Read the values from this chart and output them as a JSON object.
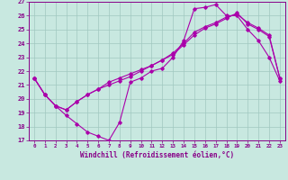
{
  "xlabel": "Windchill (Refroidissement éolien,°C)",
  "xlim": [
    -0.5,
    23.5
  ],
  "ylim": [
    17,
    27
  ],
  "yticks": [
    17,
    18,
    19,
    20,
    21,
    22,
    23,
    24,
    25,
    26,
    27
  ],
  "xticks": [
    0,
    1,
    2,
    3,
    4,
    5,
    6,
    7,
    8,
    9,
    10,
    11,
    12,
    13,
    14,
    15,
    16,
    17,
    18,
    19,
    20,
    21,
    22,
    23
  ],
  "bg_color": "#c8e8e0",
  "grid_color": "#a0c8c0",
  "line_color": "#aa00aa",
  "tick_color": "#880088",
  "line1_x": [
    0,
    1,
    2,
    3,
    4,
    5,
    6,
    7,
    8,
    9,
    10,
    11,
    12,
    13,
    14,
    15,
    16,
    17,
    18,
    19,
    20,
    21,
    22,
    23
  ],
  "line1_y": [
    21.5,
    20.3,
    19.5,
    18.8,
    18.2,
    17.6,
    17.3,
    17.0,
    18.3,
    21.2,
    21.5,
    22.0,
    22.2,
    23.0,
    24.2,
    26.5,
    26.6,
    26.8,
    26.0,
    26.0,
    25.0,
    24.2,
    23.0,
    21.3
  ],
  "line2_x": [
    0,
    1,
    2,
    3,
    4,
    5,
    6,
    7,
    8,
    9,
    10,
    11,
    12,
    13,
    14,
    15,
    16,
    17,
    18,
    19,
    20,
    21,
    22,
    23
  ],
  "line2_y": [
    21.5,
    20.3,
    19.5,
    19.2,
    19.8,
    20.3,
    20.7,
    21.2,
    21.5,
    21.8,
    22.1,
    22.4,
    22.8,
    23.2,
    23.9,
    24.6,
    25.1,
    25.4,
    25.8,
    26.2,
    25.4,
    25.0,
    24.5,
    21.5
  ],
  "line3_x": [
    0,
    1,
    2,
    3,
    4,
    5,
    6,
    7,
    8,
    9,
    10,
    11,
    12,
    13,
    14,
    15,
    16,
    17,
    18,
    19,
    20,
    21,
    22,
    23
  ],
  "line3_y": [
    21.5,
    20.3,
    19.5,
    19.2,
    19.8,
    20.3,
    20.7,
    21.0,
    21.3,
    21.6,
    22.0,
    22.4,
    22.8,
    23.3,
    24.0,
    24.8,
    25.2,
    25.5,
    25.9,
    26.1,
    25.5,
    25.1,
    24.6,
    21.5
  ]
}
